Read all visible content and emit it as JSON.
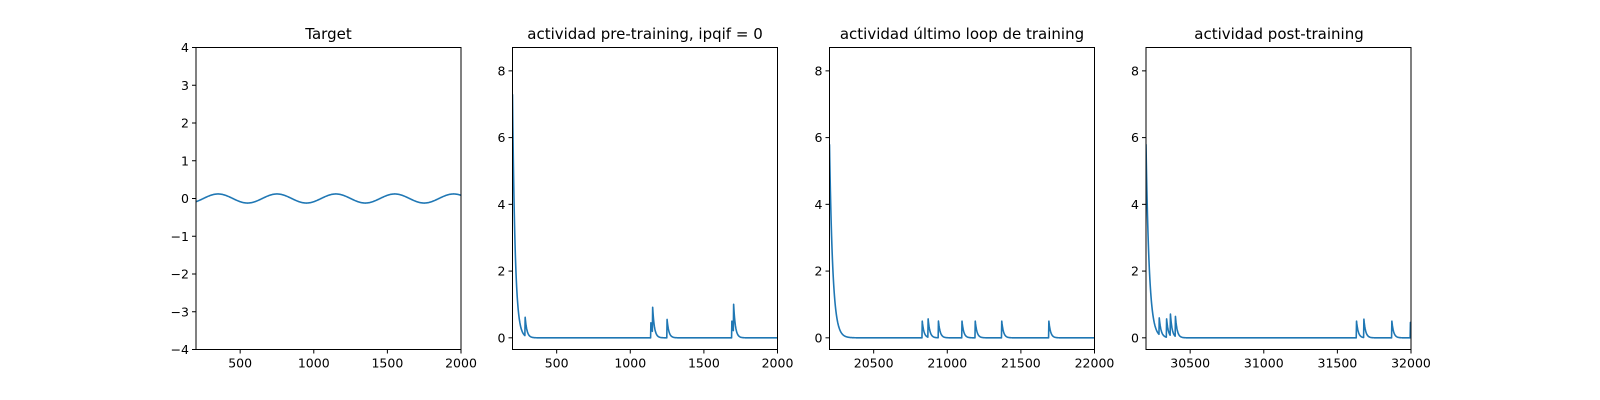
{
  "colors": {
    "series": "#1f77b4"
  },
  "chart_data": [
    {
      "type": "line",
      "title": "Target",
      "xlim": [
        200,
        2000
      ],
      "ylim": [
        -4,
        4
      ],
      "xticks": [
        500,
        1000,
        1500,
        2000
      ],
      "yticks": [
        -4,
        -3,
        -2,
        -1,
        0,
        1,
        2,
        3,
        4
      ],
      "series": [
        {
          "kind": "sine",
          "amplitude": 0.12,
          "period": 400,
          "peak_at": 350,
          "x_start": 200,
          "x_end": 2000
        }
      ]
    },
    {
      "type": "line",
      "title": "actividad pre-training, ipqif = 0",
      "xlim": [
        200,
        2000
      ],
      "ylim": [
        -0.35,
        8.7
      ],
      "xticks": [
        500,
        1000,
        1500,
        2000
      ],
      "yticks": [
        0,
        2,
        4,
        6,
        8
      ],
      "series": [
        {
          "kind": "spikes",
          "x_start": 200,
          "x_end": 2000,
          "initial": 7.3,
          "decay": 18,
          "tau": 12,
          "spikes": [
            [
              285,
              0.6
            ],
            [
              1140,
              0.45
            ],
            [
              1152,
              0.75
            ],
            [
              1250,
              0.55
            ],
            [
              1690,
              0.5
            ],
            [
              1702,
              0.82
            ]
          ]
        }
      ]
    },
    {
      "type": "line",
      "title": "actividad último loop de training",
      "xlim": [
        20200,
        22000
      ],
      "ylim": [
        -0.35,
        8.7
      ],
      "xticks": [
        20500,
        21000,
        21500,
        22000
      ],
      "yticks": [
        0,
        2,
        4,
        6,
        8
      ],
      "series": [
        {
          "kind": "spikes",
          "x_start": 20200,
          "x_end": 22000,
          "initial": 5.8,
          "decay": 22,
          "tau": 12,
          "spikes": [
            [
              20830,
              0.5
            ],
            [
              20870,
              0.55
            ],
            [
              20940,
              0.5
            ],
            [
              21100,
              0.5
            ],
            [
              21190,
              0.5
            ],
            [
              21370,
              0.5
            ],
            [
              21690,
              0.5
            ]
          ]
        }
      ]
    },
    {
      "type": "line",
      "title": "actividad post-training",
      "xlim": [
        30200,
        32000
      ],
      "ylim": [
        -0.35,
        8.7
      ],
      "xticks": [
        30500,
        31000,
        31500,
        32000
      ],
      "yticks": [
        0,
        2,
        4,
        6,
        8
      ],
      "series": [
        {
          "kind": "spikes",
          "x_start": 30200,
          "x_end": 32000,
          "initial": 5.8,
          "decay": 22,
          "tau": 12,
          "spikes": [
            [
              30290,
              0.5
            ],
            [
              30340,
              0.55
            ],
            [
              30365,
              0.7
            ],
            [
              30400,
              0.6
            ],
            [
              31630,
              0.5
            ],
            [
              31680,
              0.55
            ],
            [
              31870,
              0.5
            ],
            [
              31995,
              0.5
            ]
          ]
        }
      ]
    }
  ]
}
